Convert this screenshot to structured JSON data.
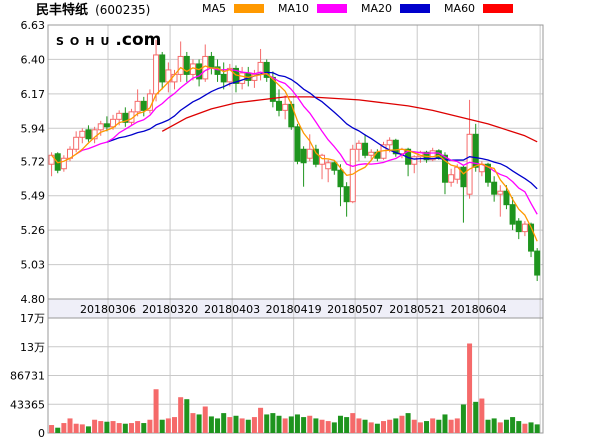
{
  "header": {
    "title": "民丰特纸",
    "code": "(600235)",
    "legend": [
      {
        "label": "MA5",
        "color": "#FF9900"
      },
      {
        "label": "MA10",
        "color": "#FF00FF"
      },
      {
        "label": "MA20",
        "color": "#0000CC"
      },
      {
        "label": "MA60",
        "color": "#FF0000"
      }
    ]
  },
  "watermark": {
    "word": "SOHU",
    "suffix": ".com"
  },
  "chart_data": {
    "type": "candlestick",
    "title": "民丰特纸 (600235) daily K-line with MA5/MA10/MA20/MA60 and volume",
    "legend_position": "top",
    "grid": true,
    "price_axis": {
      "min": 4.8,
      "max": 6.63,
      "labels": [
        "6.63",
        "6.40",
        "6.17",
        "5.94",
        "5.72",
        "5.49",
        "5.26",
        "5.03",
        "4.80"
      ]
    },
    "date_axis": {
      "labels": [
        "20180306",
        "20180320",
        "20180403",
        "20180419",
        "20180507",
        "20180521",
        "20180604"
      ],
      "grid_indices": [
        9.6,
        19.7,
        29.8,
        39.8,
        49.8,
        59.9,
        69.9,
        79.9
      ]
    },
    "volume_axis": {
      "max": 173460,
      "ticks": [
        {
          "label": "17万",
          "value": 173460
        },
        {
          "label": "13万",
          "value": 130095
        },
        {
          "label": "86731",
          "value": 86731
        },
        {
          "label": "43365",
          "value": 43365
        },
        {
          "label": "0",
          "value": 0
        }
      ]
    },
    "candles": [
      [
        5.7,
        5.78,
        5.62,
        5.76
      ],
      [
        5.77,
        5.78,
        5.64,
        5.66
      ],
      [
        5.67,
        5.76,
        5.65,
        5.74
      ],
      [
        5.74,
        5.82,
        5.72,
        5.8
      ],
      [
        5.8,
        5.92,
        5.78,
        5.88
      ],
      [
        5.88,
        5.94,
        5.84,
        5.92
      ],
      [
        5.93,
        5.96,
        5.85,
        5.87
      ],
      [
        5.87,
        5.95,
        5.84,
        5.93
      ],
      [
        5.93,
        5.99,
        5.89,
        5.97
      ],
      [
        5.97,
        6.02,
        5.92,
        5.95
      ],
      [
        5.95,
        6.03,
        5.93,
        6.0
      ],
      [
        6.0,
        6.06,
        5.96,
        6.04
      ],
      [
        6.04,
        6.08,
        5.95,
        5.98
      ],
      [
        5.98,
        6.07,
        5.96,
        6.05
      ],
      [
        6.05,
        6.2,
        6.02,
        6.12
      ],
      [
        6.12,
        6.15,
        6.02,
        6.06
      ],
      [
        6.06,
        6.2,
        6.04,
        6.17
      ],
      [
        6.17,
        6.53,
        6.12,
        6.43
      ],
      [
        6.43,
        6.45,
        6.2,
        6.25
      ],
      [
        6.25,
        6.38,
        6.18,
        6.33
      ],
      [
        6.25,
        6.33,
        6.2,
        6.3
      ],
      [
        6.3,
        6.52,
        6.25,
        6.42
      ],
      [
        6.42,
        6.45,
        6.25,
        6.3
      ],
      [
        6.3,
        6.4,
        6.26,
        6.37
      ],
      [
        6.37,
        6.4,
        6.22,
        6.27
      ],
      [
        6.27,
        6.5,
        6.25,
        6.42
      ],
      [
        6.42,
        6.45,
        6.3,
        6.35
      ],
      [
        6.35,
        6.4,
        6.25,
        6.3
      ],
      [
        6.3,
        6.38,
        6.2,
        6.25
      ],
      [
        6.25,
        6.37,
        6.22,
        6.34
      ],
      [
        6.34,
        6.36,
        6.18,
        6.24
      ],
      [
        6.24,
        6.35,
        6.2,
        6.31
      ],
      [
        6.31,
        6.35,
        6.22,
        6.26
      ],
      [
        6.26,
        6.33,
        6.21,
        6.3
      ],
      [
        6.3,
        6.47,
        6.26,
        6.38
      ],
      [
        6.38,
        6.4,
        6.25,
        6.28
      ],
      [
        6.28,
        6.32,
        6.08,
        6.12
      ],
      [
        6.12,
        6.2,
        6.02,
        6.06
      ],
      [
        6.06,
        6.16,
        6.0,
        6.1
      ],
      [
        6.1,
        6.12,
        5.93,
        5.95
      ],
      [
        5.95,
        5.97,
        5.7,
        5.72
      ],
      [
        5.8,
        5.82,
        5.55,
        5.71
      ],
      [
        5.74,
        5.9,
        5.72,
        5.8
      ],
      [
        5.8,
        5.83,
        5.68,
        5.7
      ],
      [
        5.7,
        5.77,
        5.6,
        5.76
      ],
      [
        5.67,
        5.73,
        5.58,
        5.71
      ],
      [
        5.71,
        5.72,
        5.63,
        5.66
      ],
      [
        5.66,
        5.7,
        5.42,
        5.55
      ],
      [
        5.55,
        5.58,
        5.35,
        5.45
      ],
      [
        5.45,
        5.83,
        5.44,
        5.8
      ],
      [
        5.8,
        5.86,
        5.72,
        5.84
      ],
      [
        5.84,
        5.9,
        5.74,
        5.76
      ],
      [
        5.76,
        5.8,
        5.73,
        5.78
      ],
      [
        5.78,
        5.8,
        5.72,
        5.74
      ],
      [
        5.74,
        5.85,
        5.73,
        5.83
      ],
      [
        5.83,
        5.88,
        5.78,
        5.86
      ],
      [
        5.86,
        5.87,
        5.75,
        5.77
      ],
      [
        5.77,
        5.81,
        5.74,
        5.8
      ],
      [
        5.8,
        5.81,
        5.62,
        5.7
      ],
      [
        5.7,
        5.76,
        5.64,
        5.75
      ],
      [
        5.75,
        5.79,
        5.71,
        5.78
      ],
      [
        5.78,
        5.79,
        5.71,
        5.73
      ],
      [
        5.73,
        5.81,
        5.72,
        5.79
      ],
      [
        5.79,
        5.8,
        5.73,
        5.74
      ],
      [
        5.76,
        5.78,
        5.5,
        5.58
      ],
      [
        5.58,
        5.67,
        5.55,
        5.63
      ],
      [
        5.6,
        5.7,
        5.57,
        5.68
      ],
      [
        5.68,
        5.69,
        5.31,
        5.55
      ],
      [
        5.5,
        6.13,
        5.47,
        5.9
      ],
      [
        5.9,
        5.97,
        5.65,
        5.68
      ],
      [
        5.65,
        5.72,
        5.62,
        5.7
      ],
      [
        5.7,
        5.71,
        5.55,
        5.58
      ],
      [
        5.58,
        5.62,
        5.45,
        5.5
      ],
      [
        5.5,
        5.56,
        5.35,
        5.52
      ],
      [
        5.52,
        5.56,
        5.4,
        5.43
      ],
      [
        5.43,
        5.48,
        5.26,
        5.3
      ],
      [
        5.32,
        5.34,
        5.2,
        5.25
      ],
      [
        5.25,
        5.32,
        5.22,
        5.3
      ],
      [
        5.3,
        5.31,
        5.08,
        5.12
      ],
      [
        5.12,
        5.14,
        4.92,
        4.96
      ]
    ],
    "volumes": [
      12000,
      8000,
      15000,
      22000,
      14000,
      13000,
      10000,
      20000,
      18000,
      17000,
      18000,
      15000,
      14000,
      15000,
      18000,
      15000,
      20000,
      66000,
      20000,
      22000,
      24000,
      54000,
      51000,
      30000,
      28000,
      40000,
      25000,
      22000,
      30000,
      24000,
      26000,
      22000,
      20000,
      24000,
      38000,
      28000,
      30000,
      26000,
      22000,
      25000,
      28000,
      24000,
      26000,
      22000,
      20000,
      18000,
      16000,
      26000,
      24000,
      30000,
      22000,
      20000,
      16000,
      14000,
      18000,
      20000,
      22000,
      26000,
      30000,
      20000,
      16000,
      18000,
      22000,
      20000,
      28000,
      20000,
      22000,
      43000,
      135000,
      47000,
      52000,
      20000,
      22000,
      16000,
      20000,
      24000,
      18000,
      14000,
      16000,
      13000
    ],
    "ma_lines": {
      "ma5_window": 5,
      "ma10_window": 10,
      "ma20_window": 20,
      "ma60_points": [
        [
          18,
          5.92
        ],
        [
          22,
          6.01
        ],
        [
          26,
          6.07
        ],
        [
          30,
          6.11
        ],
        [
          34,
          6.13
        ],
        [
          38,
          6.15
        ],
        [
          42,
          6.15
        ],
        [
          46,
          6.14
        ],
        [
          50,
          6.13
        ],
        [
          54,
          6.11
        ],
        [
          58,
          6.09
        ],
        [
          62,
          6.06
        ],
        [
          65,
          6.03
        ],
        [
          68,
          6.0
        ],
        [
          71,
          5.97
        ],
        [
          74,
          5.93
        ],
        [
          77,
          5.89
        ],
        [
          79,
          5.85
        ]
      ]
    },
    "colors": {
      "up": "#F56A6A",
      "down": "#1E941E",
      "ma5": "#FF9900",
      "ma10": "#FF00FF",
      "ma20": "#0000CC",
      "ma60": "#DD0000",
      "grid": "#C9C9C9",
      "border": "#999999",
      "band_fill": "#EFEFF8",
      "watermark": "#D9D9E0",
      "text": "#000000"
    }
  }
}
